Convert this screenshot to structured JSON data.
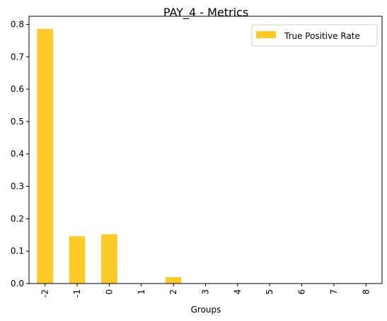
{
  "chart_data": {
    "type": "bar",
    "title": "PAY_4 - Metrics",
    "xlabel": "Groups",
    "ylabel": "",
    "categories": [
      "-2",
      "-1",
      "0",
      "1",
      "2",
      "3",
      "4",
      "5",
      "6",
      "7",
      "8"
    ],
    "series": [
      {
        "name": "True Positive Rate",
        "color": "#ffca28",
        "values": [
          0.786,
          0.146,
          0.152,
          0.0,
          0.02,
          0.0,
          0.0,
          0.0,
          0.0,
          0.0,
          0.0
        ]
      }
    ],
    "ylim": [
      0,
      0.825
    ],
    "yticks": [
      "0.0",
      "0.1",
      "0.2",
      "0.3",
      "0.4",
      "0.5",
      "0.6",
      "0.7",
      "0.8"
    ],
    "legend_position": "top-right",
    "grid": false
  }
}
